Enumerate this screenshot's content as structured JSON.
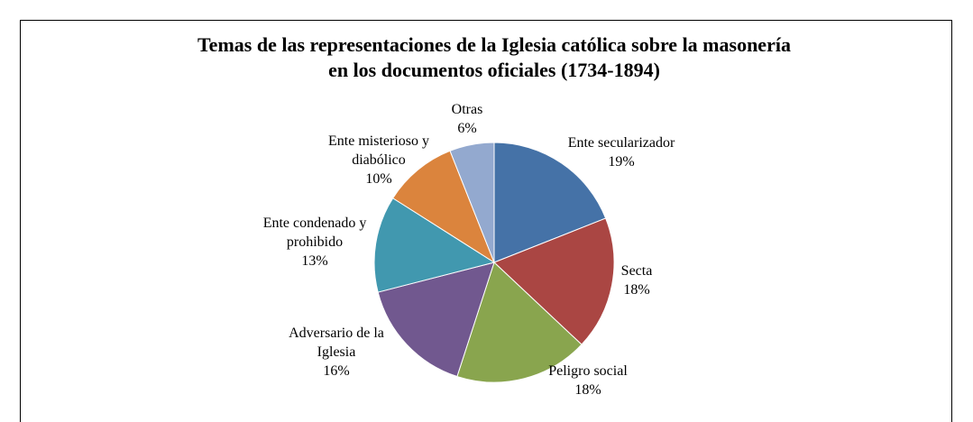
{
  "chart_data": {
    "type": "pie",
    "title": "Temas de las representaciones de la Iglesia católica sobre la masonería en los documentos oficiales (1734-1894)",
    "categories": [
      "Ente secularizador",
      "Secta",
      "Peligro social",
      "Adversario de la Iglesia",
      "Ente condenado y prohibido",
      "Ente misterioso y diabólico",
      "Otras"
    ],
    "values": [
      19,
      18,
      18,
      16,
      13,
      10,
      6
    ],
    "value_labels": [
      "19%",
      "18%",
      "18%",
      "16%",
      "13%",
      "10%",
      "6%"
    ],
    "colors": [
      "#4572a7",
      "#aa4643",
      "#89a54e",
      "#71588f",
      "#4198af",
      "#db843d",
      "#93a9cf"
    ]
  }
}
